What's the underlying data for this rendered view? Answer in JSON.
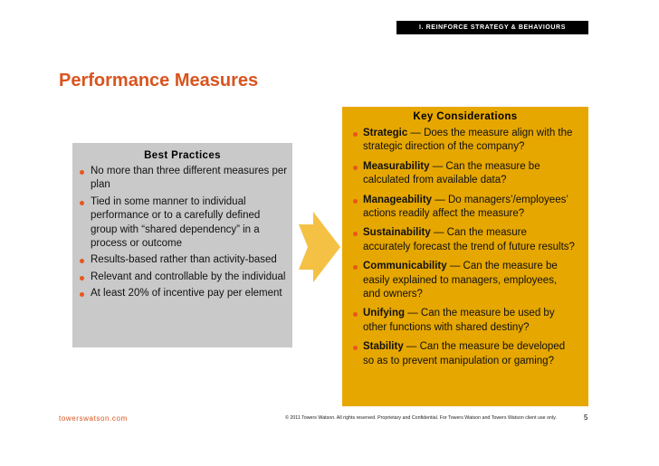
{
  "header": {
    "section": "I. REINFORCE STRATEGY & BEHAVIOURS",
    "title": "Performance Measures"
  },
  "best_practices": {
    "heading": "Best Practices",
    "items": [
      "No more than three different measures per plan",
      "Tied in some manner to individual performance or to a carefully defined group with “shared dependency” in a process or outcome",
      "Results-based rather than activity-based",
      "Relevant and controllable by the individual",
      "At least 20% of incentive pay per element"
    ]
  },
  "key_considerations": {
    "heading": "Key Considerations",
    "items": [
      {
        "term": "Strategic",
        "text": " — Does the measure align with the strategic direction of the company?"
      },
      {
        "term": "Measurability",
        "text": " — Can the measure be calculated from available data?"
      },
      {
        "term": "Manageability",
        "text": " — Do managers’/employees’ actions readily affect the measure?"
      },
      {
        "term": "Sustainability",
        "text": " — Can the measure accurately forecast the trend of future results?"
      },
      {
        "term": "Communicability",
        "text": " — Can the measure be easily explained to managers, employees, and owners?"
      },
      {
        "term": "Unifying",
        "text": " — Can the measure be used by other functions with shared destiny?"
      },
      {
        "term": "Stability",
        "text": " — Can the measure be developed so as to prevent manipulation or gaming?"
      }
    ]
  },
  "footer": {
    "site": "towerswatson.com",
    "copyright": "© 2011 Towers Watson. All rights reserved. Proprietary and Confidential. For Towers Watson and Towers Watson client use only.",
    "page": "5"
  }
}
